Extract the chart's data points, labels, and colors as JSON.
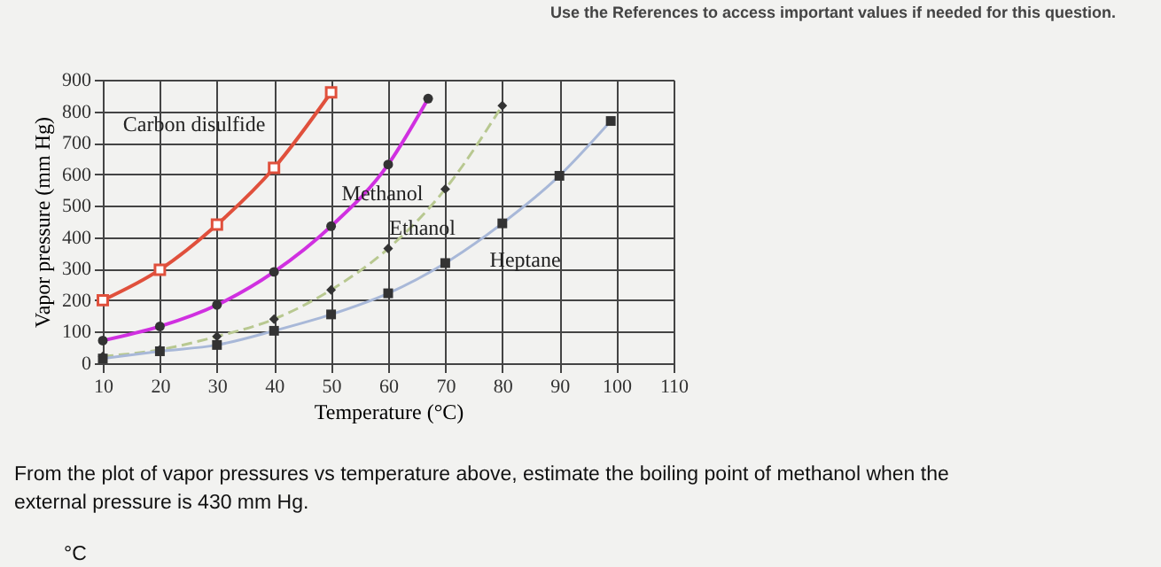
{
  "chart_data": {
    "type": "line",
    "xlabel": "Temperature (°C)",
    "ylabel": "Vapor pressure (mm Hg)",
    "xlim": [
      10,
      110
    ],
    "xticks": [
      10,
      20,
      30,
      40,
      50,
      60,
      70,
      80,
      90,
      100,
      110
    ],
    "ylim": [
      0,
      900
    ],
    "yticks": [
      0,
      100,
      200,
      300,
      400,
      500,
      600,
      700,
      800,
      900
    ],
    "grid": true,
    "series": [
      {
        "name": "Carbon disulfide",
        "color": "#e0503c",
        "marker": "square",
        "line_style": "solid",
        "x": [
          10,
          20,
          30,
          40,
          50
        ],
        "values": [
          200,
          297,
          440,
          620,
          860
        ]
      },
      {
        "name": "Methanol",
        "color": "#d030e0",
        "marker": "circle",
        "line_style": "solid",
        "x": [
          10,
          20,
          30,
          40,
          50,
          60,
          67
        ],
        "values": [
          72,
          117,
          185,
          290,
          435,
          631,
          840
        ]
      },
      {
        "name": "Ethanol",
        "color": "#b8c890",
        "marker": "diamond",
        "line_style": "dashed",
        "x": [
          10,
          20,
          30,
          40,
          50,
          60,
          70,
          80
        ],
        "values": [
          22,
          43,
          85,
          140,
          233,
          364,
          553,
          818
        ]
      },
      {
        "name": "Heptane",
        "color": "#a8b8d8",
        "marker": "square",
        "line_style": "solid",
        "x": [
          10,
          20,
          30,
          40,
          50,
          60,
          70,
          80,
          90,
          99
        ],
        "values": [
          15,
          38,
          58,
          103,
          155,
          222,
          318,
          444,
          595,
          769
        ]
      }
    ],
    "annotations": [
      "Use the References to access important values if needed for this question.",
      "From the plot of vapor pressures vs temperature above, estimate the boiling point of methanol when the external pressure is 430 mm Hg.",
      "°C"
    ]
  }
}
